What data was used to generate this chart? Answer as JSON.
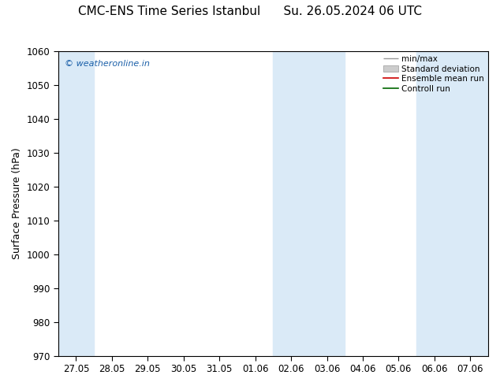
{
  "title": "CMC-ENS Time Series Istanbul      Su. 26.05.2024 06 UTC",
  "ylabel": "Surface Pressure (hPa)",
  "ylim": [
    970,
    1060
  ],
  "yticks": [
    970,
    980,
    990,
    1000,
    1010,
    1020,
    1030,
    1040,
    1050,
    1060
  ],
  "xtick_labels": [
    "27.05",
    "28.05",
    "29.05",
    "30.05",
    "31.05",
    "01.06",
    "02.06",
    "03.06",
    "04.06",
    "05.06",
    "06.06",
    "07.06"
  ],
  "shade_color": "#daeaf7",
  "watermark_text": "© weatheronline.in",
  "watermark_color": "#1a5fa8",
  "background_color": "#ffffff",
  "legend_entries": [
    "min/max",
    "Standard deviation",
    "Ensemble mean run",
    "Controll run"
  ],
  "title_fontsize": 11,
  "axis_fontsize": 9,
  "tick_fontsize": 8.5
}
